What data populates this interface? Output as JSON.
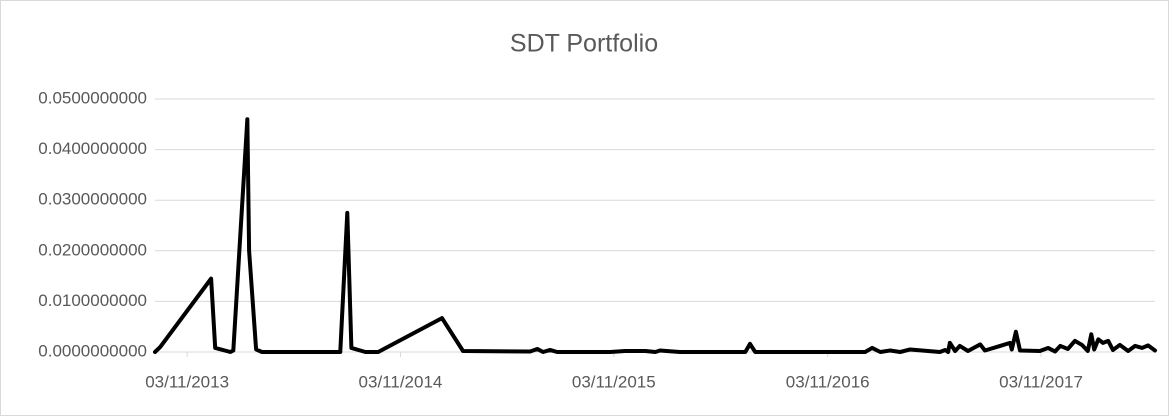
{
  "chart_data": {
    "type": "line",
    "title": "SDT Portfolio",
    "color": "#000000",
    "grid": true,
    "x": [
      "2013-09-09",
      "2013-09-18",
      "2013-12-14",
      "2013-12-21",
      "2014-01-16",
      "2014-01-21",
      "2014-02-14",
      "2014-02-17",
      "2014-03-01",
      "2014-03-11",
      "2014-07-23",
      "2014-08-04",
      "2014-08-11",
      "2014-09-04",
      "2014-09-26",
      "2015-01-13",
      "2015-02-18",
      "2015-06-13",
      "2015-06-25",
      "2015-07-05",
      "2015-07-17",
      "2015-07-29",
      "2015-10-28",
      "2015-11-22",
      "2015-12-27",
      "2016-01-13",
      "2016-01-21",
      "2016-02-24",
      "2016-06-15",
      "2016-06-23",
      "2016-07-02",
      "2016-11-07",
      "2017-01-06",
      "2017-01-18",
      "2017-02-01",
      "2017-02-18",
      "2017-03-07",
      "2017-03-24",
      "2017-05-14",
      "2017-05-23",
      "2017-05-28",
      "2017-05-31",
      "2017-06-09",
      "2017-06-17",
      "2017-07-01",
      "2017-07-22",
      "2017-07-30",
      "2017-08-25",
      "2017-09-11",
      "2017-09-14",
      "2017-09-21",
      "2017-09-28",
      "2017-11-01",
      "2017-11-15",
      "2017-11-27",
      "2017-12-06",
      "2017-12-19",
      "2017-12-31",
      "2018-01-12",
      "2018-01-22",
      "2018-01-28",
      "2018-02-02",
      "2018-02-09",
      "2018-02-17",
      "2018-02-26",
      "2018-03-06",
      "2018-03-18",
      "2018-04-01",
      "2018-04-13",
      "2018-04-25",
      "2018-05-05",
      "2018-05-17"
    ],
    "values": [
      0,
      0.001,
      0.0145,
      0.0008,
      0,
      0.0003,
      0.046,
      0.02,
      0.0005,
      0,
      0,
      0.0275,
      0.0008,
      0,
      0,
      0.0067,
      0.0002,
      0.0001,
      0.0006,
      0,
      0.0004,
      0,
      0,
      0.0002,
      0.0002,
      0,
      0.0003,
      0,
      0,
      0.0016,
      0,
      0,
      0,
      0.0008,
      0,
      0.0003,
      0,
      0.0005,
      0,
      0.0004,
      0,
      0.0018,
      0.0002,
      0.0012,
      0.0002,
      0.0015,
      0.0003,
      0.0012,
      0.0018,
      0.0005,
      0.004,
      0.0003,
      0.0002,
      0.0008,
      0.0001,
      0.0012,
      0.0006,
      0.0022,
      0.0014,
      0.0002,
      0.0035,
      0.0005,
      0.0025,
      0.0018,
      0.0022,
      0.0004,
      0.0014,
      0.0002,
      0.0012,
      0.0008,
      0.0013,
      0.0003
    ],
    "xlim": [
      "2013-09-09",
      "2018-05-17"
    ],
    "xticks": [
      {
        "value": "2013-11-03",
        "label": "03/11/2013"
      },
      {
        "value": "2014-11-03",
        "label": "03/11/2014"
      },
      {
        "value": "2015-11-03",
        "label": "03/11/2015"
      },
      {
        "value": "2016-11-03",
        "label": "03/11/2016"
      },
      {
        "value": "2017-11-03",
        "label": "03/11/2017"
      }
    ],
    "ylim": [
      0,
      0.05
    ],
    "yticks": [
      {
        "value": 0,
        "label": "0.0000000000"
      },
      {
        "value": 0.01,
        "label": "0.0100000000"
      },
      {
        "value": 0.02,
        "label": "0.0200000000"
      },
      {
        "value": 0.03,
        "label": "0.0300000000"
      },
      {
        "value": 0.04,
        "label": "0.0400000000"
      },
      {
        "value": 0.05,
        "label": "0.0500000000"
      }
    ]
  }
}
